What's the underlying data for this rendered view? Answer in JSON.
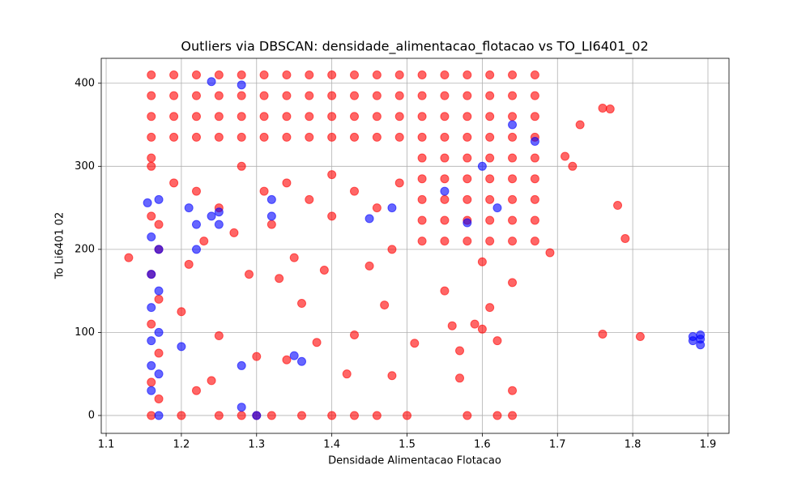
{
  "chart_data": {
    "type": "scatter",
    "title": "Outliers via DBSCAN: densidade_alimentacao_flotacao vs TO_LI6401_02",
    "x_label": "Densidade Alimentacao Flotacao",
    "y_label": "To Li6401 02",
    "xlim": [
      1.0935,
      1.928
    ],
    "ylim": [
      -21.5,
      430
    ],
    "xticks": [
      1.1,
      1.2,
      1.3,
      1.4,
      1.5,
      1.6,
      1.7,
      1.8,
      1.9
    ],
    "yticks": [
      0,
      100,
      200,
      300,
      400
    ],
    "grid": true,
    "series": [
      {
        "color": "#ff0000",
        "x": [
          1.16,
          1.19,
          1.22,
          1.25,
          1.28,
          1.31,
          1.34,
          1.37,
          1.4,
          1.43,
          1.46,
          1.49,
          1.52,
          1.55,
          1.58,
          1.61,
          1.64,
          1.67,
          1.16,
          1.19,
          1.22,
          1.25,
          1.28,
          1.31,
          1.34,
          1.37,
          1.4,
          1.43,
          1.46,
          1.49,
          1.52,
          1.55,
          1.58,
          1.61,
          1.64,
          1.67,
          1.16,
          1.19,
          1.22,
          1.25,
          1.28,
          1.31,
          1.34,
          1.37,
          1.4,
          1.43,
          1.46,
          1.49,
          1.52,
          1.55,
          1.58,
          1.61,
          1.64,
          1.67,
          1.16,
          1.19,
          1.22,
          1.25,
          1.28,
          1.31,
          1.34,
          1.37,
          1.4,
          1.43,
          1.46,
          1.49,
          1.52,
          1.55,
          1.58,
          1.61,
          1.64,
          1.67,
          1.16,
          1.19,
          1.22,
          1.25,
          1.28,
          1.31,
          1.34,
          1.37,
          1.4,
          1.43,
          1.46,
          1.49,
          1.52,
          1.55,
          1.58,
          1.61,
          1.64,
          1.67,
          1.52,
          1.55,
          1.58,
          1.61,
          1.64,
          1.67,
          1.52,
          1.55,
          1.58,
          1.61,
          1.64,
          1.67,
          1.52,
          1.55,
          1.58,
          1.61,
          1.64,
          1.67,
          1.52,
          1.55,
          1.58,
          1.61,
          1.64,
          1.67,
          1.16,
          1.16,
          1.16,
          1.16,
          1.16,
          1.16,
          1.17,
          1.17,
          1.17,
          1.17,
          1.17,
          1.13,
          1.76,
          1.77,
          1.78,
          1.79,
          1.76,
          1.81,
          1.72,
          1.71,
          1.73,
          1.69,
          1.2,
          1.25,
          1.28,
          1.3,
          1.32,
          1.36,
          1.4,
          1.43,
          1.46,
          1.5,
          1.58,
          1.62,
          1.64,
          1.25,
          1.3,
          1.34,
          1.38,
          1.43,
          1.47,
          1.48,
          1.51,
          1.56,
          1.57,
          1.57,
          1.59,
          1.6,
          1.61,
          1.62,
          1.64,
          1.64,
          1.42,
          1.36,
          1.33,
          1.29,
          1.21,
          1.23,
          1.35,
          1.45,
          1.55,
          1.6,
          1.39,
          1.2,
          1.22,
          1.24,
          1.27,
          1.32,
          1.4,
          1.48
        ],
        "values": [
          410,
          410,
          410,
          410,
          410,
          410,
          410,
          410,
          410,
          410,
          410,
          410,
          410,
          410,
          410,
          410,
          410,
          410,
          385,
          385,
          385,
          385,
          385,
          385,
          385,
          385,
          385,
          385,
          385,
          385,
          385,
          385,
          385,
          385,
          385,
          385,
          360,
          360,
          360,
          360,
          360,
          360,
          360,
          360,
          360,
          360,
          360,
          360,
          360,
          360,
          360,
          360,
          360,
          360,
          335,
          335,
          335,
          335,
          335,
          335,
          335,
          335,
          335,
          335,
          335,
          335,
          335,
          335,
          335,
          335,
          335,
          335,
          310,
          280,
          270,
          250,
          300,
          270,
          280,
          260,
          290,
          270,
          250,
          280,
          310,
          310,
          310,
          310,
          310,
          310,
          285,
          285,
          285,
          285,
          285,
          285,
          260,
          260,
          260,
          260,
          260,
          260,
          235,
          235,
          235,
          235,
          235,
          235,
          210,
          210,
          210,
          210,
          210,
          210,
          0,
          40,
          110,
          170,
          240,
          300,
          20,
          75,
          140,
          200,
          230,
          190,
          370,
          369,
          253,
          213,
          98,
          95,
          300,
          312,
          350,
          196,
          0,
          0,
          0,
          0,
          0,
          0,
          0,
          0,
          0,
          0,
          0,
          0,
          0,
          96,
          71,
          67,
          88,
          97,
          133,
          48,
          87,
          108,
          78,
          45,
          110,
          104,
          130,
          90,
          30,
          160,
          50,
          135,
          165,
          170,
          182,
          210,
          190,
          180,
          150,
          185,
          175,
          125,
          30,
          42,
          220,
          230,
          240,
          200
        ]
      },
      {
        "color": "#0000ff",
        "x": [
          1.155,
          1.16,
          1.16,
          1.16,
          1.16,
          1.16,
          1.16,
          1.17,
          1.17,
          1.17,
          1.17,
          1.17,
          1.17,
          1.2,
          1.21,
          1.22,
          1.22,
          1.24,
          1.24,
          1.25,
          1.25,
          1.28,
          1.28,
          1.28,
          1.3,
          1.32,
          1.32,
          1.35,
          1.36,
          1.45,
          1.48,
          1.58,
          1.64,
          1.67,
          1.88,
          1.88,
          1.89,
          1.89,
          1.89,
          1.62,
          1.6,
          1.55
        ],
        "values": [
          256,
          215,
          170,
          130,
          90,
          60,
          30,
          0,
          260,
          200,
          150,
          100,
          50,
          83,
          250,
          230,
          200,
          402,
          240,
          245,
          230,
          398,
          60,
          10,
          0,
          260,
          240,
          72,
          65,
          237,
          250,
          232,
          350,
          330,
          95,
          90,
          97,
          85,
          92,
          250,
          300,
          270
        ]
      }
    ]
  }
}
